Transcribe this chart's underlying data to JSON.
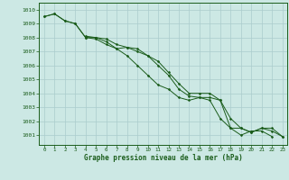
{
  "title": "Graphe pression niveau de la mer (hPa)",
  "background_color": "#cce8e4",
  "grid_color": "#aacccc",
  "line_color": "#1a5c1a",
  "marker_color": "#1a5c1a",
  "xlim": [
    -0.5,
    23.5
  ],
  "ylim": [
    1000.3,
    1010.5
  ],
  "xticks": [
    0,
    1,
    2,
    3,
    4,
    5,
    6,
    7,
    8,
    9,
    10,
    11,
    12,
    13,
    14,
    15,
    16,
    17,
    18,
    19,
    20,
    21,
    22,
    23
  ],
  "yticks": [
    1001,
    1002,
    1003,
    1004,
    1005,
    1006,
    1007,
    1008,
    1009,
    1010
  ],
  "series": [
    [
      1009.5,
      1009.7,
      1009.2,
      1009.0,
      1008.0,
      1008.0,
      1007.7,
      1007.2,
      1007.3,
      1007.0,
      1006.7,
      1006.0,
      1005.3,
      1004.3,
      1003.8,
      1003.7,
      1003.5,
      1002.2,
      1001.5,
      1001.0,
      1001.3,
      1001.3,
      1000.9,
      null
    ],
    [
      1009.5,
      1009.7,
      1009.2,
      1009.0,
      1008.0,
      1007.9,
      1007.5,
      1007.2,
      1006.7,
      1006.0,
      1005.3,
      1004.6,
      1004.3,
      1003.7,
      1003.5,
      1003.7,
      1003.7,
      1003.5,
      1001.5,
      1001.5,
      1001.2,
      1001.5,
      1001.3,
      1000.9
    ],
    [
      null,
      null,
      null,
      null,
      1008.1,
      1008.0,
      1007.9,
      1007.5,
      1007.3,
      1007.2,
      1006.7,
      1006.3,
      1005.5,
      1004.7,
      1004.0,
      1004.0,
      1004.0,
      1003.5,
      1002.2,
      1001.5,
      1001.2,
      1001.5,
      1001.5,
      1000.9
    ]
  ]
}
